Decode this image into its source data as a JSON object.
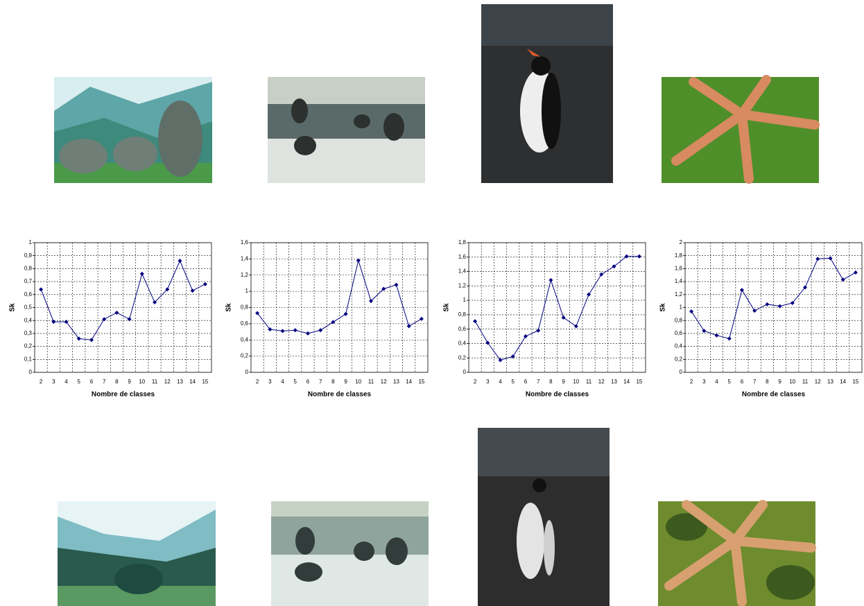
{
  "chart_data": [
    {
      "type": "line",
      "xlabel": "Nombre de classes",
      "ylabel": "Sk",
      "categories": [
        "2",
        "3",
        "4",
        "5",
        "6",
        "7",
        "8",
        "9",
        "10",
        "11",
        "12",
        "13",
        "14",
        "15"
      ],
      "series": [
        {
          "color": "#000080",
          "values": [
            0.64,
            0.39,
            0.39,
            0.26,
            0.25,
            0.41,
            0.46,
            0.41,
            0.76,
            0.54,
            0.64,
            0.86,
            0.63,
            0.68
          ]
        }
      ],
      "ylim": [
        0,
        1
      ],
      "yticks": [
        0,
        {
          "value": 0.1,
          "label": "0,1"
        },
        {
          "value": 0.2,
          "label": "0,2"
        },
        {
          "value": 0.3,
          "label": "0,3"
        },
        {
          "value": 0.4,
          "label": "0,4"
        },
        {
          "value": 0.5,
          "label": "0,5"
        },
        {
          "value": 0.6,
          "label": "0,6"
        },
        {
          "value": 0.7,
          "label": "0,7"
        },
        {
          "value": 0.8,
          "label": "0,8"
        },
        {
          "value": 0.9,
          "label": "0,9"
        },
        1
      ],
      "grid": true
    },
    {
      "type": "line",
      "xlabel": "Nombre de classes",
      "ylabel": "Sk",
      "categories": [
        "2",
        "3",
        "4",
        "5",
        "6",
        "7",
        "8",
        "9",
        "10",
        "11",
        "12",
        "13",
        "14",
        "15"
      ],
      "series": [
        {
          "color": "#000080",
          "values": [
            0.73,
            0.53,
            0.51,
            0.52,
            0.48,
            0.52,
            0.62,
            0.72,
            1.38,
            0.88,
            1.03,
            1.08,
            0.57,
            0.66
          ]
        }
      ],
      "ylim": [
        0,
        1.6
      ],
      "yticks": [
        0,
        {
          "value": 0.2,
          "label": "0,2"
        },
        {
          "value": 0.4,
          "label": "0,4"
        },
        {
          "value": 0.6,
          "label": "0,6"
        },
        {
          "value": 0.8,
          "label": "0,8"
        },
        1,
        {
          "value": 1.2,
          "label": "1,2"
        },
        {
          "value": 1.4,
          "label": "1,4"
        },
        {
          "value": 1.6,
          "label": "1,6"
        }
      ],
      "grid": true
    },
    {
      "type": "line",
      "xlabel": "Nombre de classes",
      "ylabel": "Sk",
      "categories": [
        "2",
        "3",
        "4",
        "5",
        "6",
        "7",
        "8",
        "9",
        "10",
        "11",
        "12",
        "13",
        "14",
        "15"
      ],
      "series": [
        {
          "color": "#000080",
          "values": [
            0.71,
            0.41,
            0.17,
            0.22,
            0.5,
            0.58,
            1.28,
            0.76,
            0.64,
            1.08,
            1.36,
            1.47,
            1.61,
            1.61
          ]
        }
      ],
      "ylim": [
        0,
        1.8
      ],
      "yticks": [
        0,
        {
          "value": 0.2,
          "label": "0,2"
        },
        {
          "value": 0.4,
          "label": "0,4"
        },
        {
          "value": 0.6,
          "label": "0,6"
        },
        {
          "value": 0.8,
          "label": "0,8"
        },
        1,
        {
          "value": 1.2,
          "label": "1,2"
        },
        {
          "value": 1.4,
          "label": "1,4"
        },
        {
          "value": 1.6,
          "label": "1,6"
        },
        {
          "value": 1.8,
          "label": "1,8"
        }
      ],
      "grid": true
    },
    {
      "type": "line",
      "xlabel": "Nombre de classes",
      "ylabel": "Sk",
      "categories": [
        "2",
        "3",
        "4",
        "5",
        "6",
        "7",
        "8",
        "9",
        "10",
        "11",
        "12",
        "13",
        "14",
        "15"
      ],
      "series": [
        {
          "color": "#000080",
          "values": [
            0.94,
            0.64,
            0.57,
            0.52,
            1.27,
            0.95,
            1.05,
            1.02,
            1.07,
            1.31,
            1.75,
            1.76,
            1.43,
            1.54
          ]
        }
      ],
      "ylim": [
        0,
        2
      ],
      "yticks": [
        0,
        {
          "value": 0.2,
          "label": "0,2"
        },
        {
          "value": 0.4,
          "label": "0,4"
        },
        {
          "value": 0.6,
          "label": "0,6"
        },
        {
          "value": 0.8,
          "label": "0,8"
        },
        1,
        {
          "value": 1.2,
          "label": "1,2"
        },
        {
          "value": 1.4,
          "label": "1,4"
        },
        {
          "value": 1.6,
          "label": "1,6"
        },
        {
          "value": 1.8,
          "label": "1,8"
        },
        2
      ],
      "grid": true
    }
  ]
}
